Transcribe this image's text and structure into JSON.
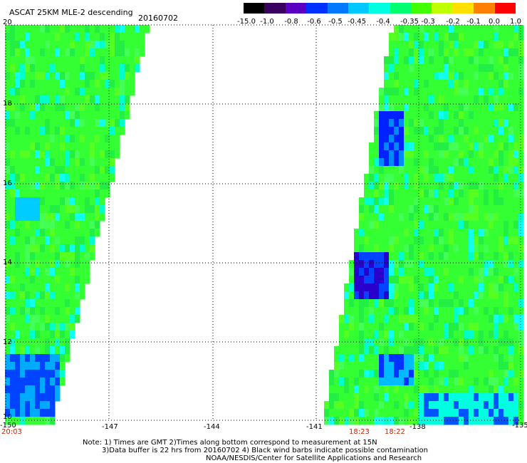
{
  "header": {
    "title": "ASCAT 25KM MLE-2 descending",
    "date": "20160702"
  },
  "colorbar": {
    "labels": [
      "-15.0",
      "-1.0",
      "-0.8",
      "-0.6",
      "-0.5",
      "-0.45",
      "-0.4",
      "-0.35",
      "-0.3",
      "-0.2",
      "-0.1",
      "0.0",
      "1.0"
    ],
    "colors": [
      "#000000",
      "#3a0060",
      "#5a00c0",
      "#0030ff",
      "#0078ff",
      "#00c8ff",
      "#00ffe0",
      "#00ff70",
      "#40ff00",
      "#c0ff00",
      "#ffe000",
      "#ff8000",
      "#ff0000"
    ]
  },
  "map_data": {
    "lon_range": [
      -150,
      -135
    ],
    "lat_range": [
      10,
      20
    ],
    "lon_ticks": [
      "-150",
      "-147",
      "-144",
      "-141",
      "-138",
      "-135"
    ],
    "lat_ticks": [
      "20",
      "18",
      "16",
      "14",
      "12",
      "10"
    ],
    "swath_times": [
      "20:03",
      "18:23",
      "18:22"
    ]
  },
  "notes": {
    "line1": "Note: 1) Times are GMT 2)Times along bottom correspond to measurement at 15N",
    "line2": "3)Data buffer is 22 hrs from 20160702 4) Black wind barbs indicate possible contamination",
    "line3": "NOAA/NESDIS/Center for Satellite Applications and Research"
  }
}
